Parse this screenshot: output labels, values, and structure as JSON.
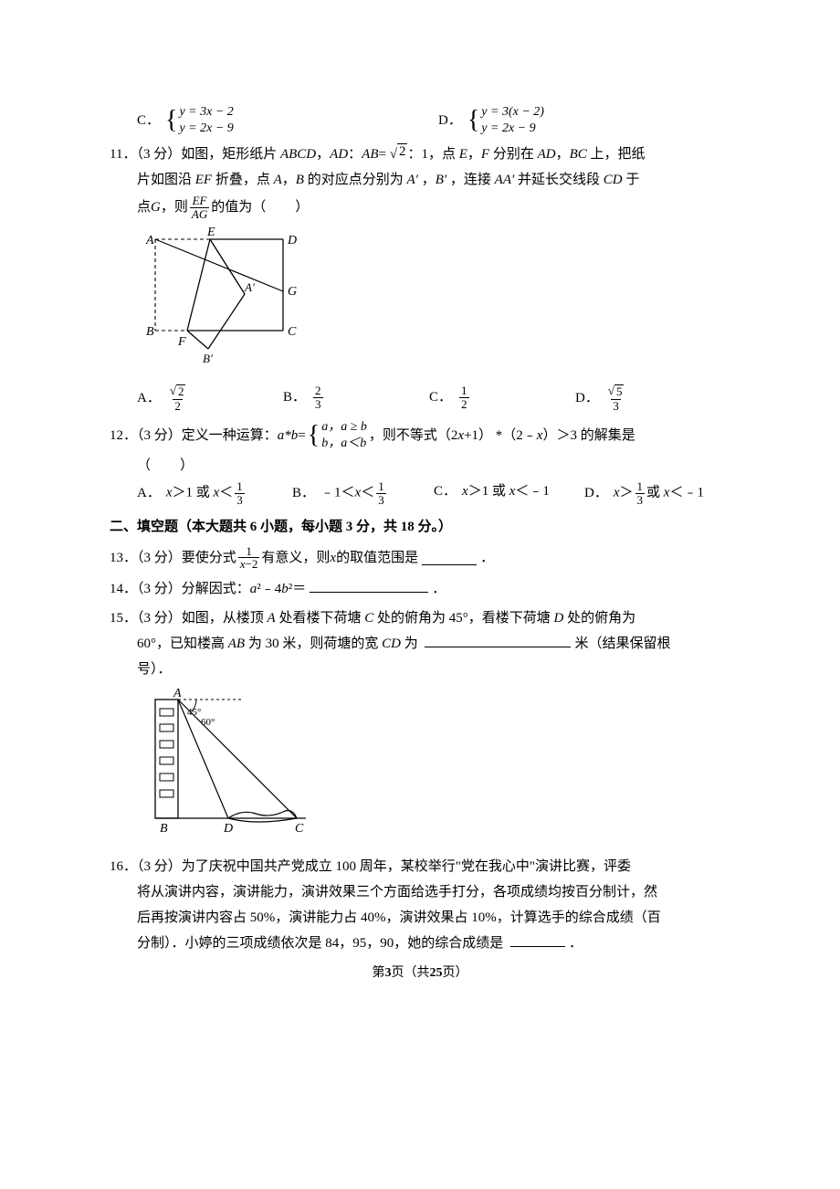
{
  "q10": {
    "options": {
      "C": {
        "label": "C．",
        "eq1": "y = 3x − 2",
        "eq2": "y = 2x − 9"
      },
      "D": {
        "label": "D．",
        "eq1": "y = 3(x − 2)",
        "eq2": "y = 2x − 9"
      }
    }
  },
  "q11": {
    "number": "11．（3 分）",
    "text1_a": "如图，矩形纸片 ",
    "abcd": "ABCD",
    "text1_b": "，",
    "ad": "AD",
    "text1_c": "：",
    "ab": "AB",
    "text1_d": "= ",
    "sqrt2": "2",
    "text1_e": "：1，点 ",
    "pE": "E",
    "text1_f": "，",
    "pF": "F",
    "text1_g": " 分别在 ",
    "text1_h": "，",
    "bc": "BC",
    "text1_i": " 上，把纸",
    "text2_a": "片如图沿 ",
    "ef": "EF",
    "text2_b": " 折叠，点 ",
    "pA": "A",
    "text2_c": "，",
    "pB": "B",
    "text2_d": " 的对应点分别为 ",
    "pAprime": "A′",
    "text2_e": " ，",
    "pBprime": "B′",
    "text2_f": " ，连接 ",
    "aaprime": "AA′",
    "text2_g": " 并延长交线段 ",
    "cd": "CD",
    "text2_h": " 于",
    "text3_a": "点 ",
    "pG": "G",
    "text3_b": "，则",
    "frac_num": "EF",
    "frac_den": "AG",
    "text3_c": "的值为（",
    "text3_d": "）",
    "options": {
      "A": {
        "label": "A．",
        "num": "2",
        "den": "2",
        "sqrt": true
      },
      "B": {
        "label": "B．",
        "num": "2",
        "den": "3",
        "sqrt": false
      },
      "C": {
        "label": "C．",
        "num": "1",
        "den": "2",
        "sqrt": false
      },
      "D": {
        "label": "D．",
        "num": "5",
        "den": "3",
        "sqrt": true
      }
    },
    "figure": {
      "labels": {
        "A": "A",
        "B": "B",
        "C": "C",
        "D": "D",
        "E": "E",
        "F": "F",
        "G": "G",
        "Ap": "A'",
        "Bp": "B'"
      }
    }
  },
  "q12": {
    "number": "12．（3 分）",
    "text1_a": "定义一种运算：",
    "ab": "a*b",
    "eq": "=",
    "case1_l": "a，",
    "case1_r": "a ≥ b",
    "case2_l": "b，",
    "case2_r": "a＜b",
    "text1_b": "，则不等式（2",
    "x1": "x",
    "text1_c": "+1） *（2﹣",
    "x2": "x",
    "text1_d": "）＞3 的解集是",
    "paren_l": "（",
    "paren_r": "）",
    "options": {
      "A": {
        "label": "A．",
        "t1": "x",
        "t2": "＞1 或 ",
        "t3": "x",
        "t4": "＜",
        "frac_num": "1",
        "frac_den": "3"
      },
      "B": {
        "label": "B．",
        "t1": "﹣1＜",
        "t2": "x",
        "t3": "＜",
        "frac_num": "1",
        "frac_den": "3"
      },
      "C": {
        "label": "C．",
        "t1": "x",
        "t2": "＞1 或 ",
        "t3": "x",
        "t4": "＜﹣1"
      },
      "D": {
        "label": "D．",
        "t1": "x",
        "t2": "＞",
        "frac_num": "1",
        "frac_den": "3",
        "t3": "或 ",
        "t4": "x",
        "t5": "＜﹣1"
      }
    }
  },
  "section2": {
    "title": "二、填空题（本大题共 6 小题，每小题 3 分，共 18 分。）"
  },
  "q13": {
    "number": "13．（3 分）",
    "t1": "要使分式",
    "frac_num": "1",
    "frac_den_a": "x",
    "frac_den_b": "−2",
    "t2": "有意义，则 ",
    "x": "x",
    "t3": " 的取值范围是 ",
    "blank_width": 60,
    "t4": "．"
  },
  "q14": {
    "number": "14．（3 分）",
    "t1": "分解因式：",
    "a2": "a",
    "t2": "²﹣4",
    "b2": "b",
    "t3": "²＝",
    "blank_width": 130,
    "t4": "．"
  },
  "q15": {
    "number": "15．（3 分）",
    "t1": "如图，从楼顶 ",
    "pA": "A",
    "t2": " 处看楼下荷塘 ",
    "pC": "C",
    "t3": " 处的俯角为 45°，看楼下荷塘 ",
    "pD": "D",
    "t4": " 处的俯角为",
    "t5": "60°，已知楼高 ",
    "ab": "AB",
    "t6": " 为 30 米，则荷塘的宽 ",
    "cd": "CD",
    "t7": " 为 ",
    "blank_width": 160,
    "t8": "米（结果保留根",
    "t9": "号）．",
    "figure": {
      "labels": {
        "A": "A",
        "B": "B",
        "C": "C",
        "D": "D",
        "ang45": "45°",
        "ang60": "60°"
      }
    }
  },
  "q16": {
    "number": "16．（3 分）",
    "t1": "为了庆祝中国共产党成立 100 周年，某校举行\"党在我心中\"演讲比赛，评委",
    "t2": "将从演讲内容，演讲能力，演讲效果三个方面给选手打分，各项成绩均按百分制计，然",
    "t3": "后再按演讲内容占 50%，演讲能力占 40%，演讲效果占 10%，计算选手的综合成绩（百",
    "t4": "分制）．小婷的三项成绩依次是 84，95，90，她的综合成绩是 ",
    "blank_width": 60,
    "t5": "．"
  },
  "footer": {
    "a": "第",
    "page": "3",
    "b": "页（共",
    "total": "25",
    "c": "页）"
  }
}
